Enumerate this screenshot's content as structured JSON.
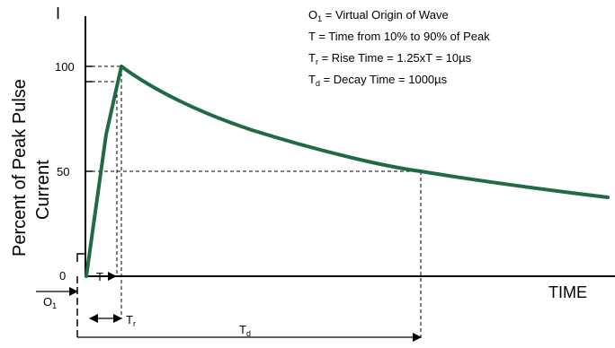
{
  "diagram": {
    "legend": [
      {
        "main": "O",
        "sub": "1",
        "rest": " = Virtual Origin of Wave"
      },
      {
        "main": "T",
        "sub": "",
        "rest": " = Time from 10% to 90% of Peak"
      },
      {
        "main": "T",
        "sub": "r",
        "rest": " = Rise Time = 1.25xT = 10µs"
      },
      {
        "main": "T",
        "sub": "d",
        "rest": " = Decay Time = 1000µs"
      }
    ],
    "y_axis": {
      "top_label": "I",
      "title_line1": "Percent of Peak Pulse",
      "title_line2": "Current",
      "ticks": [
        "100",
        "50",
        "0"
      ]
    },
    "x_axis": {
      "label": "TIME"
    },
    "markers": {
      "t": "T",
      "origin_main": "O",
      "origin_sub": "1",
      "rise_main": "T",
      "rise_sub": "r",
      "decay_main": "T",
      "decay_sub": "d"
    },
    "colors": {
      "curve": "#1f6b45",
      "lines": "#000000"
    }
  }
}
